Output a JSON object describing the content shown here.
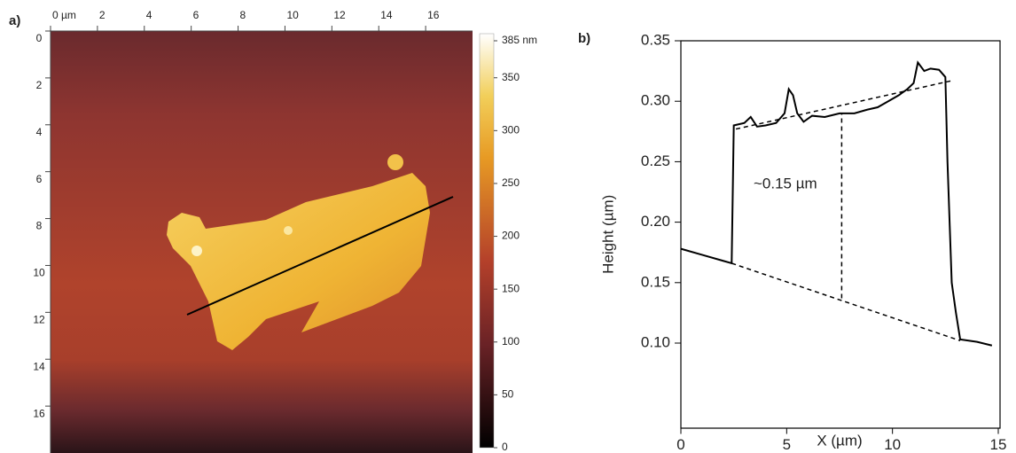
{
  "chart_data": [
    {
      "type": "image",
      "panel_label": "a)",
      "xlim": [
        0,
        18
      ],
      "xticks": [
        {
          "value": 0,
          "label": "0 µm"
        },
        2,
        4,
        6,
        8,
        10,
        12,
        14,
        16
      ],
      "ylim": [
        0,
        18
      ],
      "yticks": [
        0,
        2,
        4,
        6,
        8,
        10,
        12,
        14,
        16
      ],
      "colorbar": {
        "lim": [
          0,
          385
        ],
        "ticks": [
          0,
          50,
          100,
          150,
          200,
          250,
          300,
          350,
          {
            "value": 385,
            "label": "385 nm"
          }
        ]
      }
    },
    {
      "type": "line",
      "panel_label": "b)",
      "x": [
        0,
        1,
        2,
        2.4,
        2.5,
        3,
        3.3,
        3.6,
        4,
        4.5,
        4.9,
        5.1,
        5.3,
        5.5,
        5.8,
        6.2,
        6.8,
        7.5,
        8.2,
        8.8,
        9.3,
        9.8,
        10.3,
        10.7,
        11.0,
        11.2,
        11.5,
        11.8,
        12.2,
        12.5,
        12.6,
        12.8,
        13.0,
        13.2,
        14,
        14.7
      ],
      "series": [
        {
          "color": "#000000",
          "values": [
            0.178,
            0.173,
            0.168,
            0.166,
            0.28,
            0.282,
            0.287,
            0.279,
            0.28,
            0.282,
            0.29,
            0.31,
            0.305,
            0.29,
            0.283,
            0.288,
            0.287,
            0.29,
            0.29,
            0.293,
            0.295,
            0.3,
            0.305,
            0.31,
            0.315,
            0.332,
            0.325,
            0.327,
            0.326,
            0.32,
            0.25,
            0.15,
            0.125,
            0.103,
            0.101,
            0.098
          ]
        }
      ],
      "reference_lines": [
        {
          "x": [
            2.6,
            12.8
          ],
          "y": [
            0.277,
            0.317
          ]
        },
        {
          "x": [
            2.4,
            13.2
          ],
          "y": [
            0.166,
            0.102
          ]
        },
        {
          "x": [
            7.6,
            7.6
          ],
          "y": [
            0.137,
            0.29
          ]
        }
      ],
      "annotation": "~0.15 µm",
      "xlim": [
        0,
        15
      ],
      "xticks": [
        0,
        5,
        10,
        15
      ],
      "ylim": [
        0.03,
        0.35
      ],
      "yticks": [
        {
          "value": 0.1,
          "label": "0.10"
        },
        0.15,
        {
          "value": 0.2,
          "label": "0.20"
        },
        0.25,
        {
          "value": 0.3,
          "label": "0.30"
        },
        0.35
      ],
      "xlabel": "X (µm)",
      "ylabel": "Height (µm)"
    }
  ]
}
